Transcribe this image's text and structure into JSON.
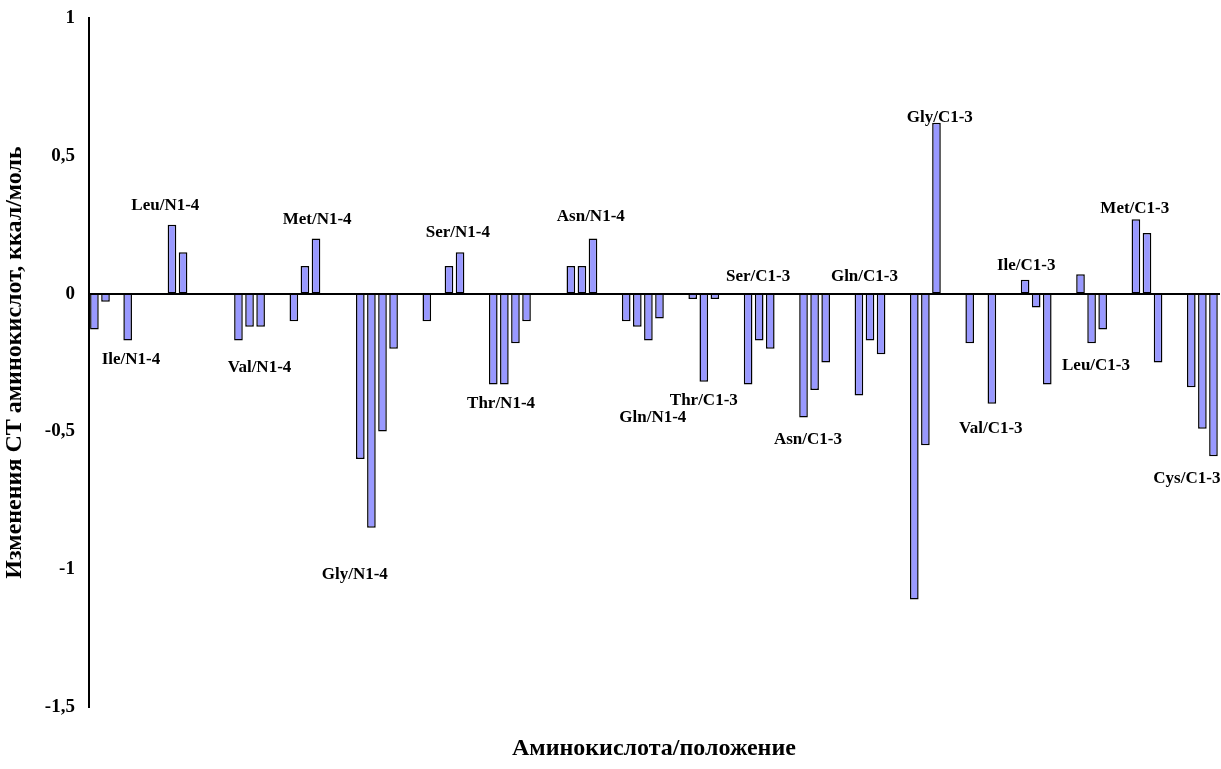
{
  "chart_data": {
    "type": "bar",
    "xlabel": "Аминокислота/положение",
    "ylabel": "Изменения СТ аминокислот, ккал/моль",
    "categories": [
      null,
      null,
      null,
      null,
      null,
      null,
      null,
      null,
      null,
      null,
      null,
      null,
      null,
      null,
      null,
      null,
      null,
      null,
      null,
      null,
      null,
      null,
      null,
      null,
      null,
      null,
      null,
      null,
      null,
      null,
      null,
      null,
      null,
      null,
      null,
      null,
      null,
      null,
      null,
      null,
      null,
      null,
      null,
      null,
      null,
      null,
      null,
      null,
      null,
      null,
      null,
      null,
      null,
      null,
      null,
      null,
      null,
      null,
      null,
      null,
      null,
      null,
      null,
      null,
      null,
      null,
      null,
      null,
      null,
      null,
      null,
      null,
      null,
      null,
      null,
      null,
      null,
      null,
      null,
      null,
      null,
      null,
      null,
      null,
      null,
      null,
      null,
      null,
      null,
      null,
      null,
      null,
      null,
      null,
      null,
      null,
      null,
      null,
      null,
      null,
      null,
      null
    ],
    "values": [
      -0.13,
      -0.03,
      null,
      -0.17,
      null,
      null,
      null,
      0.25,
      0.15,
      null,
      null,
      null,
      null,
      -0.17,
      -0.12,
      -0.12,
      null,
      null,
      -0.1,
      0.1,
      0.2,
      null,
      null,
      null,
      -0.6,
      -0.85,
      -0.5,
      -0.2,
      null,
      null,
      -0.1,
      null,
      0.1,
      0.15,
      null,
      null,
      -0.33,
      -0.33,
      -0.18,
      -0.1,
      null,
      null,
      null,
      0.1,
      0.1,
      0.2,
      null,
      null,
      -0.1,
      -0.12,
      -0.17,
      -0.09,
      null,
      null,
      -0.02,
      -0.32,
      -0.02,
      null,
      null,
      -0.33,
      -0.17,
      -0.2,
      null,
      null,
      -0.45,
      -0.35,
      -0.25,
      null,
      null,
      -0.37,
      -0.17,
      -0.22,
      null,
      null,
      -1.11,
      -0.55,
      0.62,
      null,
      null,
      -0.18,
      null,
      -0.4,
      null,
      null,
      0.05,
      -0.05,
      -0.33,
      null,
      null,
      0.07,
      -0.18,
      -0.13,
      null,
      null,
      0.27,
      0.22,
      -0.25,
      null,
      null,
      -0.34,
      -0.49,
      -0.59
    ],
    "color": "#9999ff",
    "ylim": [
      -1.5,
      1
    ],
    "yticks": [
      {
        "value": -1.5,
        "label": "-1,5"
      },
      -1,
      {
        "value": -0.5,
        "label": "-0,5"
      },
      0,
      {
        "value": 0.5,
        "label": "0,5"
      },
      1
    ],
    "annotations": [
      "Ile/N1-4",
      "Leu/N1-4",
      "Val/N1-4",
      "Met/N1-4",
      "Gly/N1-4",
      "Ser/N1-4",
      "Thr/N1-4",
      "Asn/N1-4",
      "Gln/N1-4",
      "Thr/C1-3",
      "Ser/C1-3",
      "Asn/C1-3",
      "Gln/C1-3",
      "Gly/C1-3",
      "Val/C1-3",
      "Ile/C1-3",
      "Leu/C1-3",
      "Met/C1-3",
      "Cys/C1-3"
    ]
  }
}
